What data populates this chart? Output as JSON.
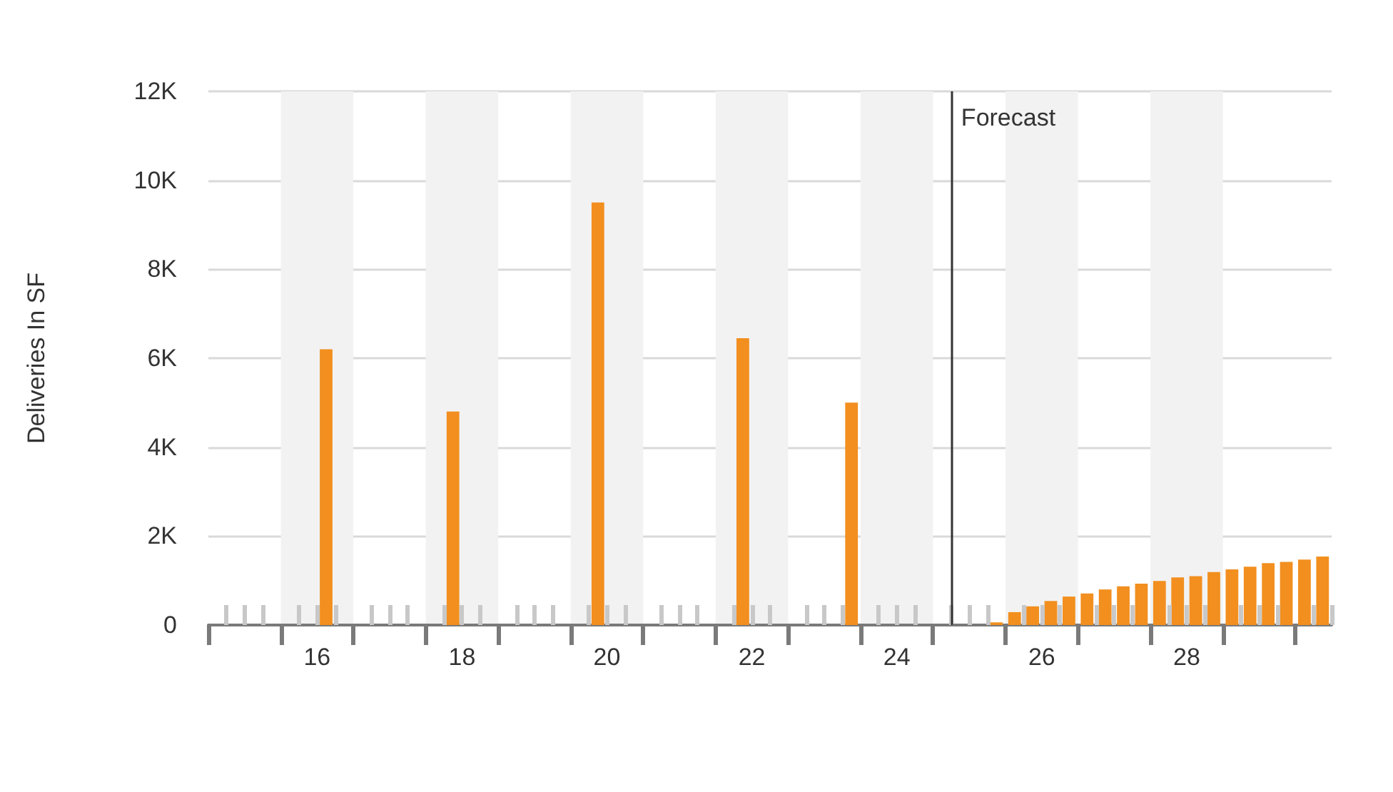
{
  "chart_data": {
    "type": "bar",
    "ylabel": "Deliveries In SF",
    "x": [
      16.125,
      17.875,
      19.875,
      21.875,
      23.375,
      25.375,
      25.625,
      25.875,
      26.125,
      26.375,
      26.625,
      26.875,
      27.125,
      27.375,
      27.625,
      27.875,
      28.125,
      28.375,
      28.625,
      28.875,
      29.125,
      29.375,
      29.625,
      29.875
    ],
    "values": [
      6200,
      4800,
      9500,
      6450,
      5000,
      60,
      290,
      420,
      540,
      640,
      710,
      800,
      870,
      930,
      990,
      1070,
      1100,
      1190,
      1250,
      1310,
      1390,
      1420,
      1470,
      1540
    ],
    "color": "#f28f1f",
    "xlim": [
      14.5,
      30
    ],
    "xticks": [
      {
        "value": 14.5,
        "label": null
      },
      {
        "value": 15.5,
        "label": null
      },
      16,
      {
        "value": 16.5,
        "label": null
      },
      {
        "value": 17.5,
        "label": null
      },
      18,
      {
        "value": 18.5,
        "label": null
      },
      {
        "value": 19.5,
        "label": null
      },
      20,
      {
        "value": 20.5,
        "label": null
      },
      {
        "value": 21.5,
        "label": null
      },
      22,
      {
        "value": 22.5,
        "label": null
      },
      {
        "value": 23.5,
        "label": null
      },
      24,
      {
        "value": 24.5,
        "label": null
      },
      {
        "value": 25.5,
        "label": null
      },
      26,
      {
        "value": 26.5,
        "label": null
      },
      {
        "value": 27.5,
        "label": null
      },
      28,
      {
        "value": 28.5,
        "label": null
      },
      {
        "value": 29.5,
        "label": null
      }
    ],
    "ylim": [
      0,
      12000
    ],
    "yticks": [
      0,
      {
        "value": 2000,
        "label": "2K"
      },
      {
        "value": 4000,
        "label": "4K"
      },
      {
        "value": 6000,
        "label": "6K"
      },
      {
        "value": 8000,
        "label": "8K"
      },
      {
        "value": 10000,
        "label": "10K"
      },
      {
        "value": 12000,
        "label": "12K"
      }
    ],
    "ref_lines": [
      {
        "axis": "x",
        "value": 24.75,
        "label": "Forecast",
        "color": "#333333"
      }
    ],
    "grid": "y"
  }
}
